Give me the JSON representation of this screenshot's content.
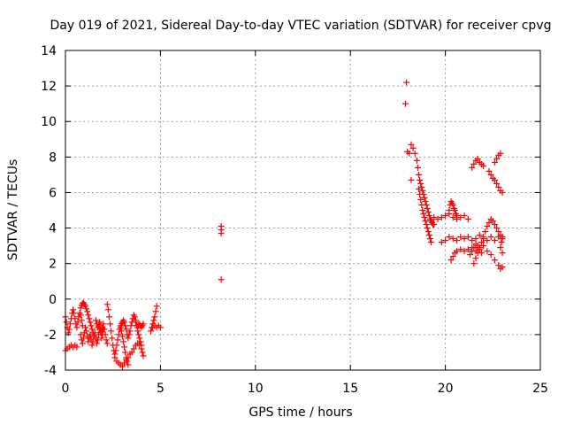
{
  "chart_data": {
    "type": "scatter",
    "title": "Day 019 of 2021, Sidereal Day-to-day VTEC variation (SDTVAR) for receiver cpvg",
    "xlabel": "GPS time / hours",
    "ylabel": "SDTVAR / TECUs",
    "xlim": [
      0,
      25
    ],
    "ylim": [
      -4,
      14
    ],
    "xticks": [
      0,
      5,
      10,
      15,
      20,
      25
    ],
    "yticks": [
      -4,
      -2,
      0,
      2,
      4,
      6,
      8,
      10,
      12,
      14
    ],
    "xtick_labels": [
      "0",
      "5",
      "10",
      "15",
      "20",
      "25"
    ],
    "ytick_labels": [
      "-4",
      "-2",
      "0",
      "2",
      "4",
      "6",
      "8",
      "10",
      "12",
      "14"
    ],
    "grid": true,
    "marker": "+",
    "color": "#ff0000",
    "series": [
      {
        "name": "SDTVAR",
        "points": [
          [
            0.0,
            -2.9
          ],
          [
            0.1,
            -2.8
          ],
          [
            0.2,
            -2.7
          ],
          [
            0.3,
            -2.6
          ],
          [
            0.4,
            -2.7
          ],
          [
            0.5,
            -2.6
          ],
          [
            0.6,
            -2.7
          ],
          [
            0.0,
            -1.0
          ],
          [
            0.05,
            -1.3
          ],
          [
            0.1,
            -1.6
          ],
          [
            0.15,
            -1.9
          ],
          [
            0.2,
            -1.7
          ],
          [
            0.25,
            -1.4
          ],
          [
            0.3,
            -1.1
          ],
          [
            0.35,
            -0.8
          ],
          [
            0.4,
            -0.6
          ],
          [
            0.45,
            -0.8
          ],
          [
            0.5,
            -1.1
          ],
          [
            0.55,
            -1.4
          ],
          [
            0.6,
            -1.6
          ],
          [
            0.65,
            -1.3
          ],
          [
            0.7,
            -1.0
          ],
          [
            0.75,
            -0.8
          ],
          [
            0.8,
            -0.9
          ],
          [
            0.85,
            -1.2
          ],
          [
            0.9,
            -1.5
          ],
          [
            0.8,
            -2.0
          ],
          [
            0.85,
            -2.3
          ],
          [
            0.9,
            -2.5
          ],
          [
            0.95,
            -2.2
          ],
          [
            1.0,
            -1.9
          ],
          [
            1.05,
            -1.6
          ],
          [
            1.1,
            -1.8
          ],
          [
            1.15,
            -2.1
          ],
          [
            1.2,
            -2.4
          ],
          [
            1.25,
            -2.2
          ],
          [
            1.3,
            -2.0
          ],
          [
            1.35,
            -2.3
          ],
          [
            1.4,
            -2.6
          ],
          [
            1.45,
            -2.4
          ],
          [
            1.5,
            -2.1
          ],
          [
            1.55,
            -1.9
          ],
          [
            1.6,
            -2.2
          ],
          [
            1.65,
            -2.5
          ],
          [
            1.7,
            -2.3
          ],
          [
            1.75,
            -2.0
          ],
          [
            1.8,
            -1.7
          ],
          [
            1.85,
            -1.9
          ],
          [
            1.9,
            -2.2
          ],
          [
            1.95,
            -2.0
          ],
          [
            2.0,
            -1.7
          ],
          [
            0.8,
            -0.5
          ],
          [
            0.85,
            -0.35
          ],
          [
            0.9,
            -0.25
          ],
          [
            0.95,
            -0.2
          ],
          [
            1.0,
            -0.3
          ],
          [
            1.05,
            -0.4
          ],
          [
            1.1,
            -0.55
          ],
          [
            1.15,
            -0.7
          ],
          [
            1.2,
            -0.9
          ],
          [
            1.25,
            -1.1
          ],
          [
            1.3,
            -1.3
          ],
          [
            1.35,
            -1.5
          ],
          [
            1.4,
            -1.7
          ],
          [
            1.45,
            -1.9
          ],
          [
            1.5,
            -2.1
          ],
          [
            1.6,
            -1.2
          ],
          [
            1.65,
            -1.4
          ],
          [
            1.7,
            -1.6
          ],
          [
            1.75,
            -1.5
          ],
          [
            1.8,
            -1.3
          ],
          [
            1.85,
            -1.5
          ],
          [
            1.9,
            -1.8
          ],
          [
            1.95,
            -1.6
          ],
          [
            2.0,
            -1.4
          ],
          [
            2.05,
            -1.7
          ],
          [
            2.1,
            -2.0
          ],
          [
            2.15,
            -2.3
          ],
          [
            2.2,
            -2.5
          ],
          [
            2.2,
            -0.3
          ],
          [
            2.25,
            -0.6
          ],
          [
            2.3,
            -1.0
          ],
          [
            2.35,
            -1.4
          ],
          [
            2.4,
            -1.8
          ],
          [
            2.45,
            -2.2
          ],
          [
            2.5,
            -2.6
          ],
          [
            2.55,
            -2.9
          ],
          [
            2.6,
            -3.1
          ],
          [
            2.65,
            -2.9
          ],
          [
            2.7,
            -2.6
          ],
          [
            2.75,
            -2.3
          ],
          [
            2.8,
            -2.0
          ],
          [
            2.85,
            -1.7
          ],
          [
            2.9,
            -1.5
          ],
          [
            2.95,
            -1.8
          ],
          [
            3.0,
            -2.1
          ],
          [
            3.05,
            -2.4
          ],
          [
            3.1,
            -2.7
          ],
          [
            3.15,
            -3.0
          ],
          [
            3.2,
            -3.3
          ],
          [
            3.25,
            -3.5
          ],
          [
            3.3,
            -3.7
          ],
          [
            2.6,
            -3.3
          ],
          [
            2.7,
            -3.5
          ],
          [
            2.8,
            -3.6
          ],
          [
            2.9,
            -3.7
          ],
          [
            3.0,
            -3.8
          ],
          [
            3.1,
            -3.6
          ],
          [
            3.2,
            -3.4
          ],
          [
            3.3,
            -3.3
          ],
          [
            3.4,
            -3.1
          ],
          [
            3.5,
            -3.0
          ],
          [
            3.6,
            -2.8
          ],
          [
            3.7,
            -2.6
          ],
          [
            3.8,
            -2.5
          ],
          [
            3.9,
            -2.6
          ],
          [
            4.0,
            -2.8
          ],
          [
            4.05,
            -3.0
          ],
          [
            4.1,
            -3.2
          ],
          [
            2.9,
            -1.6
          ],
          [
            2.95,
            -1.4
          ],
          [
            3.0,
            -1.3
          ],
          [
            3.05,
            -1.2
          ],
          [
            3.1,
            -1.3
          ],
          [
            3.15,
            -1.5
          ],
          [
            3.2,
            -1.7
          ],
          [
            3.25,
            -2.0
          ],
          [
            3.3,
            -2.2
          ],
          [
            3.35,
            -2.0
          ],
          [
            3.4,
            -1.8
          ],
          [
            3.45,
            -1.5
          ],
          [
            3.5,
            -1.3
          ],
          [
            3.55,
            -1.1
          ],
          [
            3.6,
            -0.9
          ],
          [
            3.65,
            -1.0
          ],
          [
            3.7,
            -1.2
          ],
          [
            3.75,
            -1.5
          ],
          [
            3.8,
            -1.8
          ],
          [
            3.85,
            -2.0
          ],
          [
            3.9,
            -2.2
          ],
          [
            3.95,
            -2.4
          ],
          [
            4.0,
            -2.6
          ],
          [
            3.7,
            -1.3
          ],
          [
            3.75,
            -1.5
          ],
          [
            3.8,
            -1.6
          ],
          [
            3.85,
            -1.5
          ],
          [
            3.9,
            -1.4
          ],
          [
            3.95,
            -1.5
          ],
          [
            4.0,
            -1.6
          ],
          [
            4.05,
            -1.5
          ],
          [
            4.1,
            -1.4
          ],
          [
            4.5,
            -1.8
          ],
          [
            4.55,
            -1.6
          ],
          [
            4.6,
            -1.4
          ],
          [
            4.65,
            -1.2
          ],
          [
            4.7,
            -1.0
          ],
          [
            4.75,
            -0.7
          ],
          [
            4.8,
            -0.4
          ],
          [
            4.6,
            -1.6
          ],
          [
            4.7,
            -1.5
          ],
          [
            4.8,
            -1.6
          ],
          [
            4.9,
            -1.5
          ],
          [
            5.0,
            -1.6
          ],
          [
            8.2,
            4.1
          ],
          [
            8.2,
            3.9
          ],
          [
            8.2,
            3.7
          ],
          [
            8.2,
            1.1
          ],
          [
            17.95,
            12.2
          ],
          [
            17.9,
            11.0
          ],
          [
            18.0,
            8.3
          ],
          [
            18.1,
            8.2
          ],
          [
            18.2,
            8.7
          ],
          [
            18.3,
            8.5
          ],
          [
            18.4,
            8.2
          ],
          [
            18.5,
            7.8
          ],
          [
            18.55,
            7.4
          ],
          [
            18.6,
            7.0
          ],
          [
            18.65,
            6.7
          ],
          [
            18.7,
            6.5
          ],
          [
            18.75,
            6.3
          ],
          [
            18.8,
            6.1
          ],
          [
            18.85,
            5.9
          ],
          [
            18.9,
            5.7
          ],
          [
            18.95,
            5.5
          ],
          [
            19.0,
            5.3
          ],
          [
            19.05,
            5.1
          ],
          [
            19.1,
            4.9
          ],
          [
            19.15,
            4.7
          ],
          [
            19.2,
            4.5
          ],
          [
            19.25,
            4.4
          ],
          [
            19.3,
            4.3
          ],
          [
            19.35,
            4.2
          ],
          [
            19.4,
            4.2
          ],
          [
            18.2,
            6.7
          ],
          [
            18.6,
            6.2
          ],
          [
            18.65,
            5.9
          ],
          [
            18.7,
            5.6
          ],
          [
            18.75,
            5.3
          ],
          [
            18.8,
            5.0
          ],
          [
            18.85,
            4.8
          ],
          [
            18.9,
            4.6
          ],
          [
            18.95,
            4.4
          ],
          [
            19.0,
            4.2
          ],
          [
            19.05,
            4.0
          ],
          [
            19.1,
            3.8
          ],
          [
            19.15,
            3.6
          ],
          [
            19.2,
            3.4
          ],
          [
            19.25,
            3.2
          ],
          [
            19.4,
            4.6
          ],
          [
            19.6,
            4.5
          ],
          [
            19.8,
            4.6
          ],
          [
            20.0,
            4.7
          ],
          [
            20.2,
            4.8
          ],
          [
            20.4,
            4.6
          ],
          [
            20.6,
            4.5
          ],
          [
            20.8,
            4.6
          ],
          [
            21.0,
            4.7
          ],
          [
            21.2,
            4.5
          ],
          [
            20.2,
            5.0
          ],
          [
            20.25,
            5.3
          ],
          [
            20.3,
            5.5
          ],
          [
            20.35,
            5.4
          ],
          [
            20.4,
            5.3
          ],
          [
            20.45,
            5.1
          ],
          [
            20.5,
            5.0
          ],
          [
            20.55,
            4.8
          ],
          [
            20.6,
            4.7
          ],
          [
            19.8,
            3.2
          ],
          [
            20.0,
            3.3
          ],
          [
            20.2,
            3.5
          ],
          [
            20.4,
            3.4
          ],
          [
            20.6,
            3.3
          ],
          [
            20.8,
            3.5
          ],
          [
            21.0,
            3.4
          ],
          [
            21.2,
            3.5
          ],
          [
            21.4,
            3.3
          ],
          [
            21.6,
            3.4
          ],
          [
            21.8,
            3.6
          ],
          [
            22.0,
            3.4
          ],
          [
            22.2,
            3.3
          ],
          [
            22.4,
            3.5
          ],
          [
            22.6,
            3.3
          ],
          [
            22.8,
            3.5
          ],
          [
            23.0,
            3.4
          ],
          [
            20.3,
            2.2
          ],
          [
            20.4,
            2.4
          ],
          [
            20.5,
            2.6
          ],
          [
            20.6,
            2.7
          ],
          [
            20.8,
            2.8
          ],
          [
            21.0,
            2.7
          ],
          [
            21.2,
            2.8
          ],
          [
            21.4,
            2.9
          ],
          [
            21.6,
            2.7
          ],
          [
            21.8,
            2.8
          ],
          [
            22.0,
            3.0
          ],
          [
            22.2,
            2.7
          ],
          [
            22.4,
            2.5
          ],
          [
            22.6,
            2.2
          ],
          [
            22.8,
            1.9
          ],
          [
            22.9,
            1.7
          ],
          [
            23.0,
            1.8
          ],
          [
            21.5,
            2.0
          ],
          [
            21.6,
            2.3
          ],
          [
            21.7,
            2.6
          ],
          [
            21.8,
            2.9
          ],
          [
            21.9,
            3.2
          ],
          [
            22.0,
            3.5
          ],
          [
            22.1,
            3.8
          ],
          [
            22.2,
            4.1
          ],
          [
            22.3,
            4.3
          ],
          [
            22.4,
            4.5
          ],
          [
            22.5,
            4.4
          ],
          [
            22.6,
            4.2
          ],
          [
            22.7,
            4.0
          ],
          [
            22.8,
            3.8
          ],
          [
            22.9,
            3.6
          ],
          [
            23.0,
            3.5
          ],
          [
            22.9,
            2.9
          ],
          [
            23.0,
            2.6
          ],
          [
            22.95,
            3.2
          ],
          [
            21.3,
            2.5
          ],
          [
            21.4,
            2.7
          ],
          [
            21.5,
            2.9
          ],
          [
            21.6,
            3.1
          ],
          [
            21.7,
            3.0
          ],
          [
            21.8,
            2.8
          ],
          [
            21.9,
            2.6
          ],
          [
            21.4,
            7.4
          ],
          [
            21.5,
            7.6
          ],
          [
            21.6,
            7.8
          ],
          [
            21.7,
            7.9
          ],
          [
            21.8,
            7.7
          ],
          [
            21.9,
            7.6
          ],
          [
            22.0,
            7.5
          ],
          [
            22.3,
            7.2
          ],
          [
            22.4,
            7.0
          ],
          [
            22.5,
            6.8
          ],
          [
            22.6,
            6.7
          ],
          [
            22.7,
            6.5
          ],
          [
            22.8,
            6.3
          ],
          [
            22.9,
            6.1
          ],
          [
            23.0,
            6.0
          ],
          [
            22.6,
            7.7
          ],
          [
            22.7,
            7.9
          ],
          [
            22.8,
            8.1
          ],
          [
            22.9,
            8.2
          ]
        ]
      }
    ]
  }
}
